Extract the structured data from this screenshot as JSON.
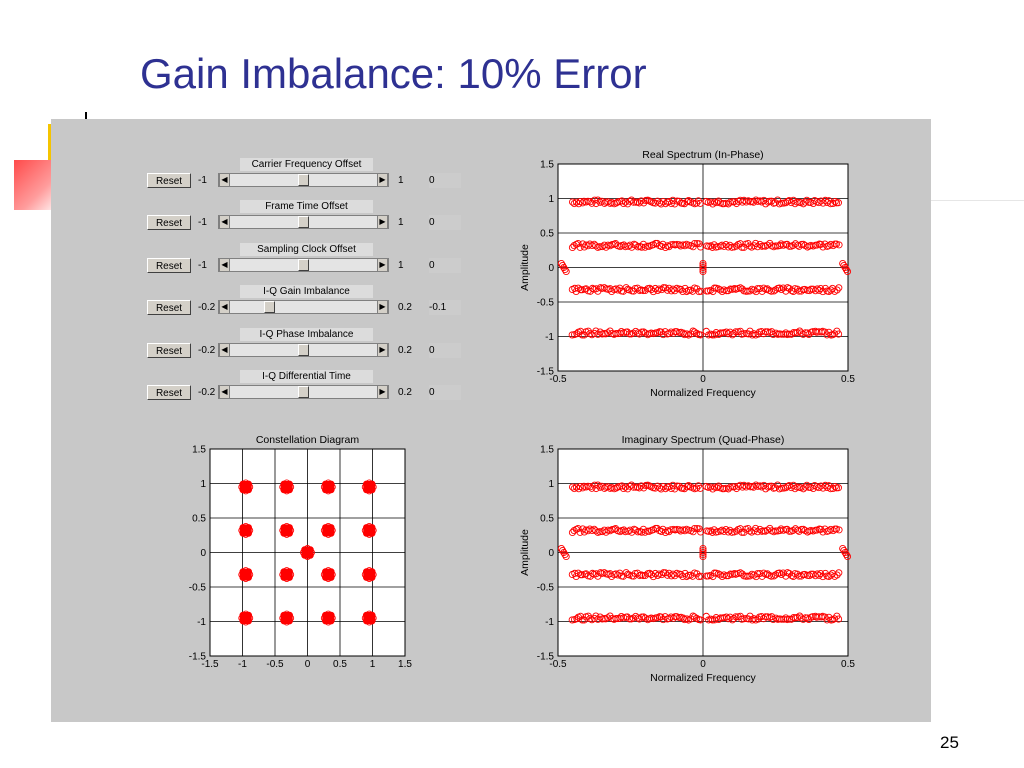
{
  "slide": {
    "title": "Gain Imbalance: 10% Error",
    "page_number": "25"
  },
  "colors": {
    "title": "#2e3192",
    "figure_bg": "#c8c8c8",
    "marker": "#ff0000",
    "deco_yellow": "#f5c400",
    "deco_red": "#ff4a4a"
  },
  "controls": [
    {
      "title": "Carrier Frequency Offset",
      "reset_label": "Reset",
      "min": "-1",
      "max": "1",
      "value": "0",
      "position": 0.5
    },
    {
      "title": "Frame Time Offset",
      "reset_label": "Reset",
      "min": "-1",
      "max": "1",
      "value": "0",
      "position": 0.5
    },
    {
      "title": "Sampling Clock Offset",
      "reset_label": "Reset",
      "min": "-1",
      "max": "1",
      "value": "0",
      "position": 0.5
    },
    {
      "title": "I-Q Gain Imbalance",
      "reset_label": "Reset",
      "min": "-0.2",
      "max": "0.2",
      "value": "-0.1",
      "position": 0.25
    },
    {
      "title": "I-Q Phase Imbalance",
      "reset_label": "Reset",
      "min": "-0.2",
      "max": "0.2",
      "value": "0",
      "position": 0.5
    },
    {
      "title": "I-Q Differential Time",
      "reset_label": "Reset",
      "min": "-0.2",
      "max": "0.2",
      "value": "0",
      "position": 0.5
    }
  ],
  "chart_data": [
    {
      "type": "scatter",
      "title": "Real Spectrum (In-Phase)",
      "xlabel": "Normalized Frequency",
      "ylabel": "Amplitude",
      "xlim": [
        -0.5,
        0.5
      ],
      "ylim": [
        -1.5,
        1.5
      ],
      "xticks": [
        "-0.5",
        "0",
        "0.5"
      ],
      "yticks": [
        "1.5",
        "1",
        "0.5",
        "0",
        "-0.5",
        "-1",
        "-1.5"
      ],
      "grid": true,
      "marker": "circle",
      "levels": [
        0.95,
        0.32,
        -0.32,
        -0.95
      ],
      "x_range": [
        -0.45,
        0.47
      ],
      "special_points": [
        {
          "x": -0.48,
          "y": 0
        },
        {
          "x": 0,
          "y": 0
        },
        {
          "x": 0.49,
          "y": 0
        }
      ]
    },
    {
      "type": "scatter",
      "title": "Constellation Diagram",
      "xlabel": "",
      "ylabel": "",
      "xlim": [
        -1.5,
        1.5
      ],
      "ylim": [
        -1.5,
        1.5
      ],
      "xticks": [
        "-1.5",
        "-1",
        "-0.5",
        "0",
        "0.5",
        "1",
        "1.5"
      ],
      "yticks": [
        "1.5",
        "1",
        "0.5",
        "0",
        "-0.5",
        "-1",
        "-1.5"
      ],
      "grid": true,
      "marker": "circle",
      "points": [
        {
          "x": -0.95,
          "y": 0.95
        },
        {
          "x": -0.32,
          "y": 0.95
        },
        {
          "x": 0.32,
          "y": 0.95
        },
        {
          "x": 0.95,
          "y": 0.95
        },
        {
          "x": -0.95,
          "y": 0.32
        },
        {
          "x": -0.32,
          "y": 0.32
        },
        {
          "x": 0.32,
          "y": 0.32
        },
        {
          "x": 0.95,
          "y": 0.32
        },
        {
          "x": 0,
          "y": 0
        },
        {
          "x": -0.95,
          "y": -0.32
        },
        {
          "x": -0.32,
          "y": -0.32
        },
        {
          "x": 0.32,
          "y": -0.32
        },
        {
          "x": 0.95,
          "y": -0.32
        },
        {
          "x": -0.95,
          "y": -0.95
        },
        {
          "x": -0.32,
          "y": -0.95
        },
        {
          "x": 0.32,
          "y": -0.95
        },
        {
          "x": 0.95,
          "y": -0.95
        }
      ]
    },
    {
      "type": "scatter",
      "title": "Imaginary Spectrum (Quad-Phase)",
      "xlabel": "Normalized Frequency",
      "ylabel": "Amplitude",
      "xlim": [
        -0.5,
        0.5
      ],
      "ylim": [
        -1.5,
        1.5
      ],
      "xticks": [
        "-0.5",
        "0",
        "0.5"
      ],
      "yticks": [
        "1.5",
        "1",
        "0.5",
        "0",
        "-0.5",
        "-1",
        "-1.5"
      ],
      "grid": true,
      "marker": "circle",
      "levels": [
        0.95,
        0.32,
        -0.32,
        -0.95
      ],
      "x_range": [
        -0.45,
        0.47
      ],
      "special_points": [
        {
          "x": -0.48,
          "y": 0
        },
        {
          "x": 0,
          "y": 0
        },
        {
          "x": 0.49,
          "y": 0
        }
      ]
    }
  ]
}
